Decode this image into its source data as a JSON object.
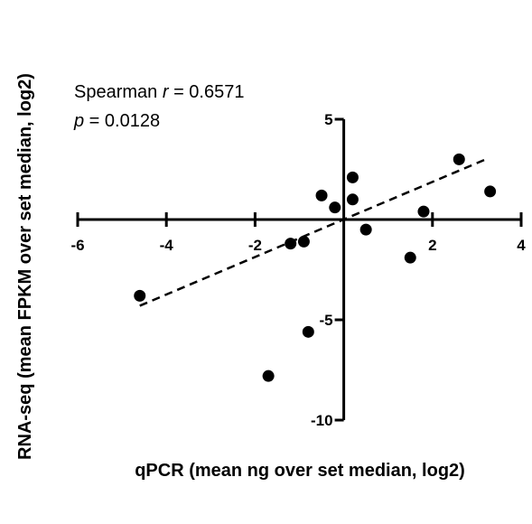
{
  "chart_data": {
    "type": "scatter",
    "title": "",
    "xlabel": "qPCR (mean ng over set median, log2)",
    "ylabel": "RNA-seq (mean FPKM over set median, log2)",
    "xlim": [
      -6,
      4
    ],
    "ylim": [
      -10,
      5
    ],
    "x_ticks": [
      -6,
      -4,
      -2,
      2,
      4
    ],
    "y_ticks": [
      5,
      -5,
      -10
    ],
    "x_tick_labels": [
      "-6",
      "-4",
      "-2",
      "2",
      "4"
    ],
    "y_tick_labels": [
      "5",
      "-5",
      "-10"
    ],
    "grid": false,
    "series": [
      {
        "x": [
          -4.6,
          -1.7,
          -0.8,
          -1.2,
          -0.9,
          -0.5,
          -0.2,
          0.2,
          0.2,
          0.5,
          1.5,
          1.8,
          2.6,
          3.3
        ],
        "y": [
          -3.8,
          -7.8,
          -5.6,
          -1.2,
          -1.1,
          1.2,
          0.6,
          2.1,
          1.0,
          -0.5,
          -1.9,
          0.4,
          3.0,
          1.4
        ]
      }
    ],
    "trendline": {
      "style": "dashed",
      "x": [
        -4.6,
        3.2
      ],
      "y": [
        -4.3,
        3.0
      ]
    },
    "annotations": {
      "line1_prefix": "Spearman ",
      "line1_symbol": "r",
      "line1_value": " = 0.6571",
      "line2_symbol": "p",
      "line2_value": " = 0.0128"
    }
  }
}
